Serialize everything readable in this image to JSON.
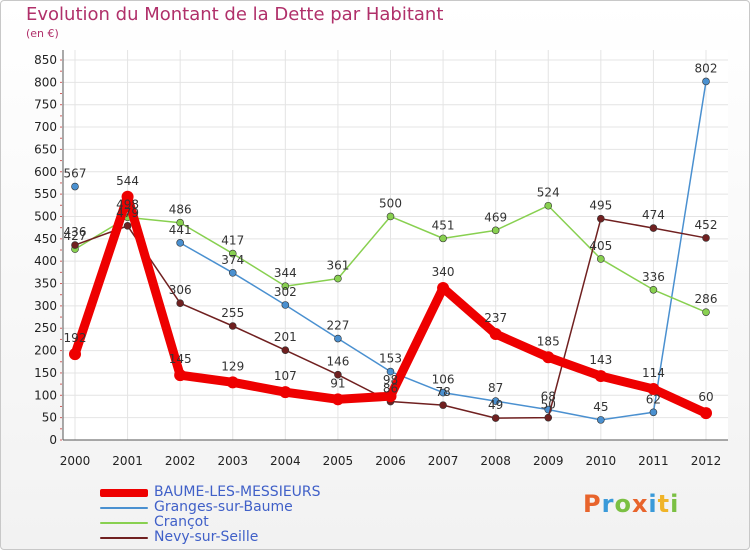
{
  "header": {
    "title": "Evolution du Montant de la Dette par Habitant",
    "subtitle": "(en €)"
  },
  "logo": {
    "text": "Proxiti",
    "colors": [
      "#e8642c",
      "#3a9ad9",
      "#7bc043",
      "#e8642c",
      "#3a9ad9",
      "#f0b429",
      "#7bc043"
    ]
  },
  "chart_data": {
    "type": "line",
    "title": "Evolution du Montant de la Dette par Habitant",
    "subtitle": "(en €)",
    "xlabel": "",
    "ylabel": "",
    "ylim": [
      0,
      850
    ],
    "yticks": [
      0,
      50,
      100,
      150,
      200,
      250,
      300,
      350,
      400,
      450,
      500,
      550,
      600,
      650,
      700,
      750,
      800,
      850
    ],
    "grid": true,
    "legend_position": "bottom-left",
    "x": [
      "2000",
      "2001",
      "2002",
      "2003",
      "2004",
      "2005",
      "2006",
      "2007",
      "2008",
      "2009",
      "2010",
      "2011",
      "2012"
    ],
    "series": [
      {
        "name": "BAUME-LES-MESSIEURS",
        "color": "#ee0000",
        "values": [
          192,
          544,
          145,
          129,
          107,
          91,
          98,
          340,
          237,
          185,
          143,
          114,
          60
        ],
        "labels": [
          "192",
          "544",
          "145",
          "129",
          "107",
          "91",
          "98",
          "340",
          "237",
          "185",
          "143",
          "114",
          "60"
        ]
      },
      {
        "name": "Granges-sur-Baume",
        "color": "#4a90d0",
        "values": [
          567,
          null,
          441,
          374,
          302,
          227,
          153,
          106,
          87,
          68,
          45,
          62,
          802
        ],
        "labels": [
          "567",
          "",
          "441",
          "374",
          "302",
          "227",
          "153",
          "106",
          "87",
          "68",
          "45",
          "62",
          "802"
        ]
      },
      {
        "name": "Crançot",
        "color": "#88d050",
        "values": [
          427,
          498,
          486,
          417,
          344,
          361,
          500,
          451,
          469,
          524,
          405,
          336,
          286
        ],
        "labels": [
          "427",
          "498",
          "486",
          "417",
          "344",
          "361",
          "500",
          "451",
          "469",
          "524",
          "405",
          "336",
          "286"
        ]
      },
      {
        "name": "Nevy-sur-Seille",
        "color": "#702020",
        "values": [
          436,
          479,
          306,
          255,
          201,
          146,
          86,
          78,
          49,
          50,
          495,
          474,
          452
        ],
        "labels": [
          "436",
          "479",
          "306",
          "255",
          "201",
          "146",
          "86",
          "78",
          "49",
          "50",
          "495",
          "474",
          "452"
        ]
      }
    ]
  }
}
